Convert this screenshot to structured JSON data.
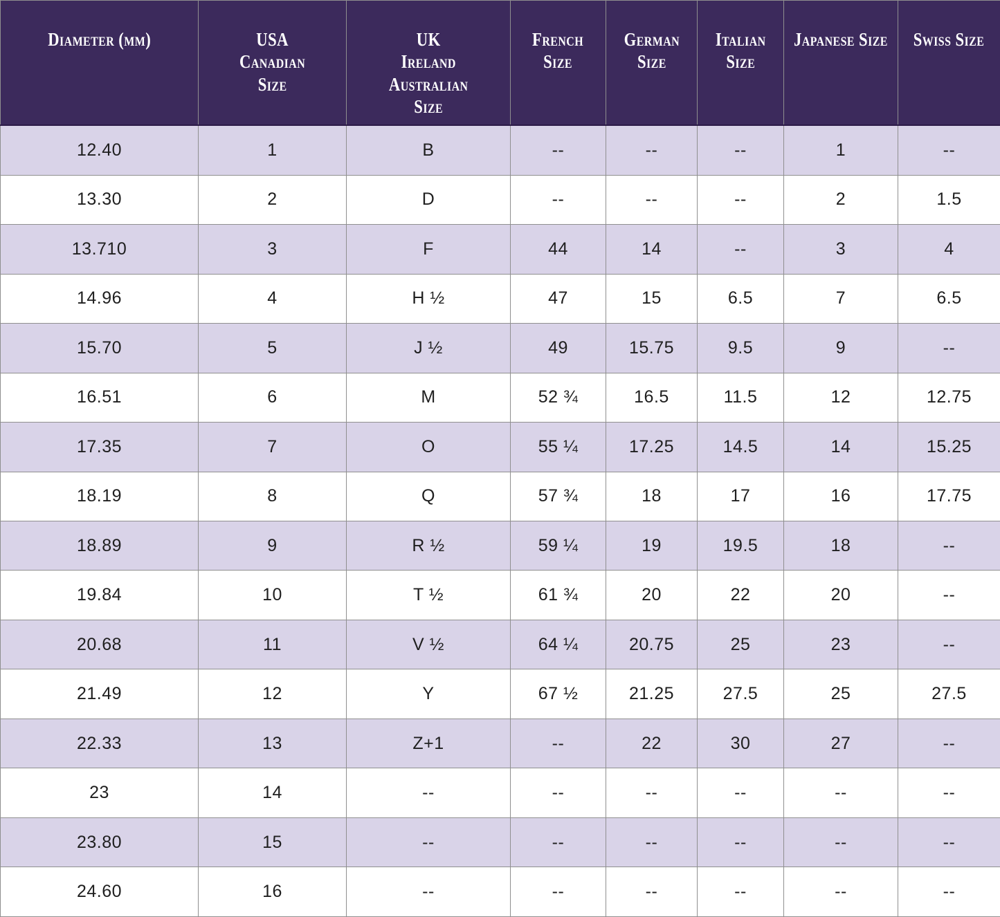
{
  "colors": {
    "header_bg": "#3c2a5c",
    "header_text": "#ffffff",
    "row_alt_bg": "#d9d3e8",
    "row_bg": "#ffffff",
    "grid_line": "#8f8f8f",
    "cell_text": "#1f1f1f"
  },
  "chart_data": {
    "type": "table",
    "empty_marker": "--",
    "columns": [
      {
        "id": "diameter",
        "label": "Diameter (mm)"
      },
      {
        "id": "usa-canadian",
        "label": "USA\nCanadian\nSize"
      },
      {
        "id": "uk-ireland-australian",
        "label": "UK\nIreland\nAustralian\nSize"
      },
      {
        "id": "french",
        "label": "French\nSize"
      },
      {
        "id": "german",
        "label": "German\nSize"
      },
      {
        "id": "italian",
        "label": "Italian\nSize"
      },
      {
        "id": "japanese",
        "label": "Japanese Size"
      },
      {
        "id": "swiss",
        "label": "Swiss Size"
      }
    ],
    "rows": [
      [
        "12.40",
        "1",
        "B",
        "--",
        "--",
        "--",
        "1",
        "--"
      ],
      [
        "13.30",
        "2",
        "D",
        "--",
        "--",
        "--",
        "2",
        "1.5"
      ],
      [
        "13.710",
        "3",
        "F",
        "44",
        "14",
        "--",
        "3",
        "4"
      ],
      [
        "14.96",
        "4",
        "H ½",
        "47",
        "15",
        "6.5",
        "7",
        "6.5"
      ],
      [
        "15.70",
        "5",
        "J ½",
        "49",
        "15.75",
        "9.5",
        "9",
        "--"
      ],
      [
        "16.51",
        "6",
        "M",
        "52 ¾",
        "16.5",
        "11.5",
        "12",
        "12.75"
      ],
      [
        "17.35",
        "7",
        "O",
        "55 ¼",
        "17.25",
        "14.5",
        "14",
        "15.25"
      ],
      [
        "18.19",
        "8",
        "Q",
        "57 ¾",
        "18",
        "17",
        "16",
        "17.75"
      ],
      [
        "18.89",
        "9",
        "R ½",
        "59 ¼",
        "19",
        "19.5",
        "18",
        "--"
      ],
      [
        "19.84",
        "10",
        "T ½",
        "61 ¾",
        "20",
        "22",
        "20",
        "--"
      ],
      [
        "20.68",
        "11",
        "V ½",
        "64 ¼",
        "20.75",
        "25",
        "23",
        "--"
      ],
      [
        "21.49",
        "12",
        "Y",
        "67 ½",
        "21.25",
        "27.5",
        "25",
        "27.5"
      ],
      [
        "22.33",
        "13",
        "Z+1",
        "--",
        "22",
        "30",
        "27",
        "--"
      ],
      [
        "23",
        "14",
        "--",
        "--",
        "--",
        "--",
        "--",
        "--"
      ],
      [
        "23.80",
        "15",
        "--",
        "--",
        "--",
        "--",
        "--",
        "--"
      ],
      [
        "24.60",
        "16",
        "--",
        "--",
        "--",
        "--",
        "--",
        "--"
      ]
    ]
  }
}
